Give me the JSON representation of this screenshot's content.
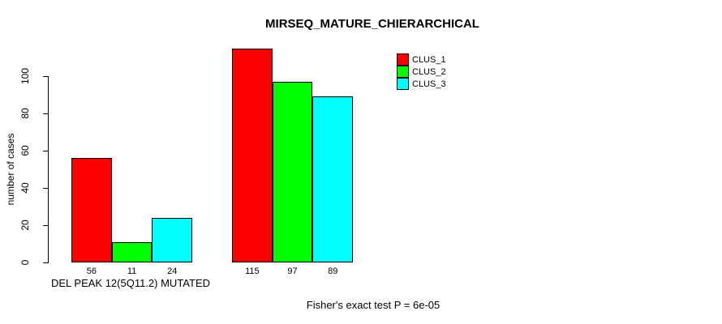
{
  "chart_data": {
    "type": "bar",
    "title": "MIRSEQ_MATURE_CHIERARCHICAL",
    "ylabel": "number of cases",
    "xlabel": "DEL PEAK 12(5Q11.2) MUTATED",
    "ylim": [
      0,
      115
    ],
    "yticks": [
      0,
      20,
      40,
      60,
      80,
      100
    ],
    "categories": [
      "DEL PEAK 12(5Q11.2) MUTATED",
      ""
    ],
    "series": [
      {
        "name": "CLUS_1",
        "color": "#ff0000",
        "values": [
          56,
          115
        ]
      },
      {
        "name": "CLUS_2",
        "color": "#00ff00",
        "values": [
          11,
          97
        ]
      },
      {
        "name": "CLUS_3",
        "color": "#00ffff",
        "values": [
          24,
          89
        ]
      }
    ],
    "bar_labels": [
      [
        56,
        11,
        24
      ],
      [
        115,
        97,
        89
      ]
    ],
    "legend_position": "top-right",
    "annotation": "Fisher's exact test P = 6e-05",
    "grid": false,
    "axis_color": "#000000",
    "background": "#ffffff"
  }
}
